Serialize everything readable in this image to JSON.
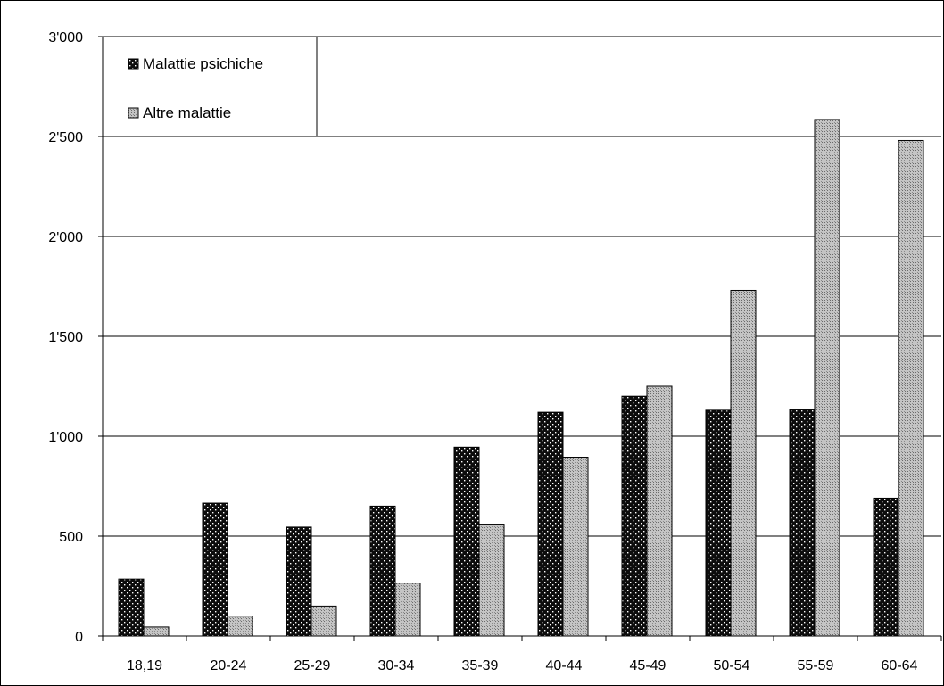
{
  "chart_data": {
    "type": "bar",
    "title": "",
    "xlabel": "",
    "ylabel": "",
    "categories": [
      "18,19",
      "20-24",
      "25-29",
      "30-34",
      "35-39",
      "40-44",
      "45-49",
      "50-54",
      "55-59",
      "60-64"
    ],
    "series": [
      {
        "name": "Malattie psichiche",
        "pattern": "dotted-dark",
        "color": "#111111",
        "values": [
          285,
          665,
          545,
          650,
          945,
          1120,
          1200,
          1130,
          1135,
          690
        ]
      },
      {
        "name": "Altre malattie",
        "pattern": "crosshatch-gray",
        "color": "#b0b0b0",
        "values": [
          45,
          100,
          150,
          265,
          560,
          895,
          1250,
          1730,
          2585,
          2480
        ]
      }
    ],
    "ylim": [
      0,
      3000
    ],
    "yticks": [
      0,
      500,
      1000,
      1500,
      2000,
      2500,
      3000
    ],
    "ytick_labels": [
      "0",
      "500",
      "1'000",
      "1'500",
      "2'000",
      "2'500",
      "3'000"
    ],
    "grid": true,
    "legend_position": "top-left"
  }
}
